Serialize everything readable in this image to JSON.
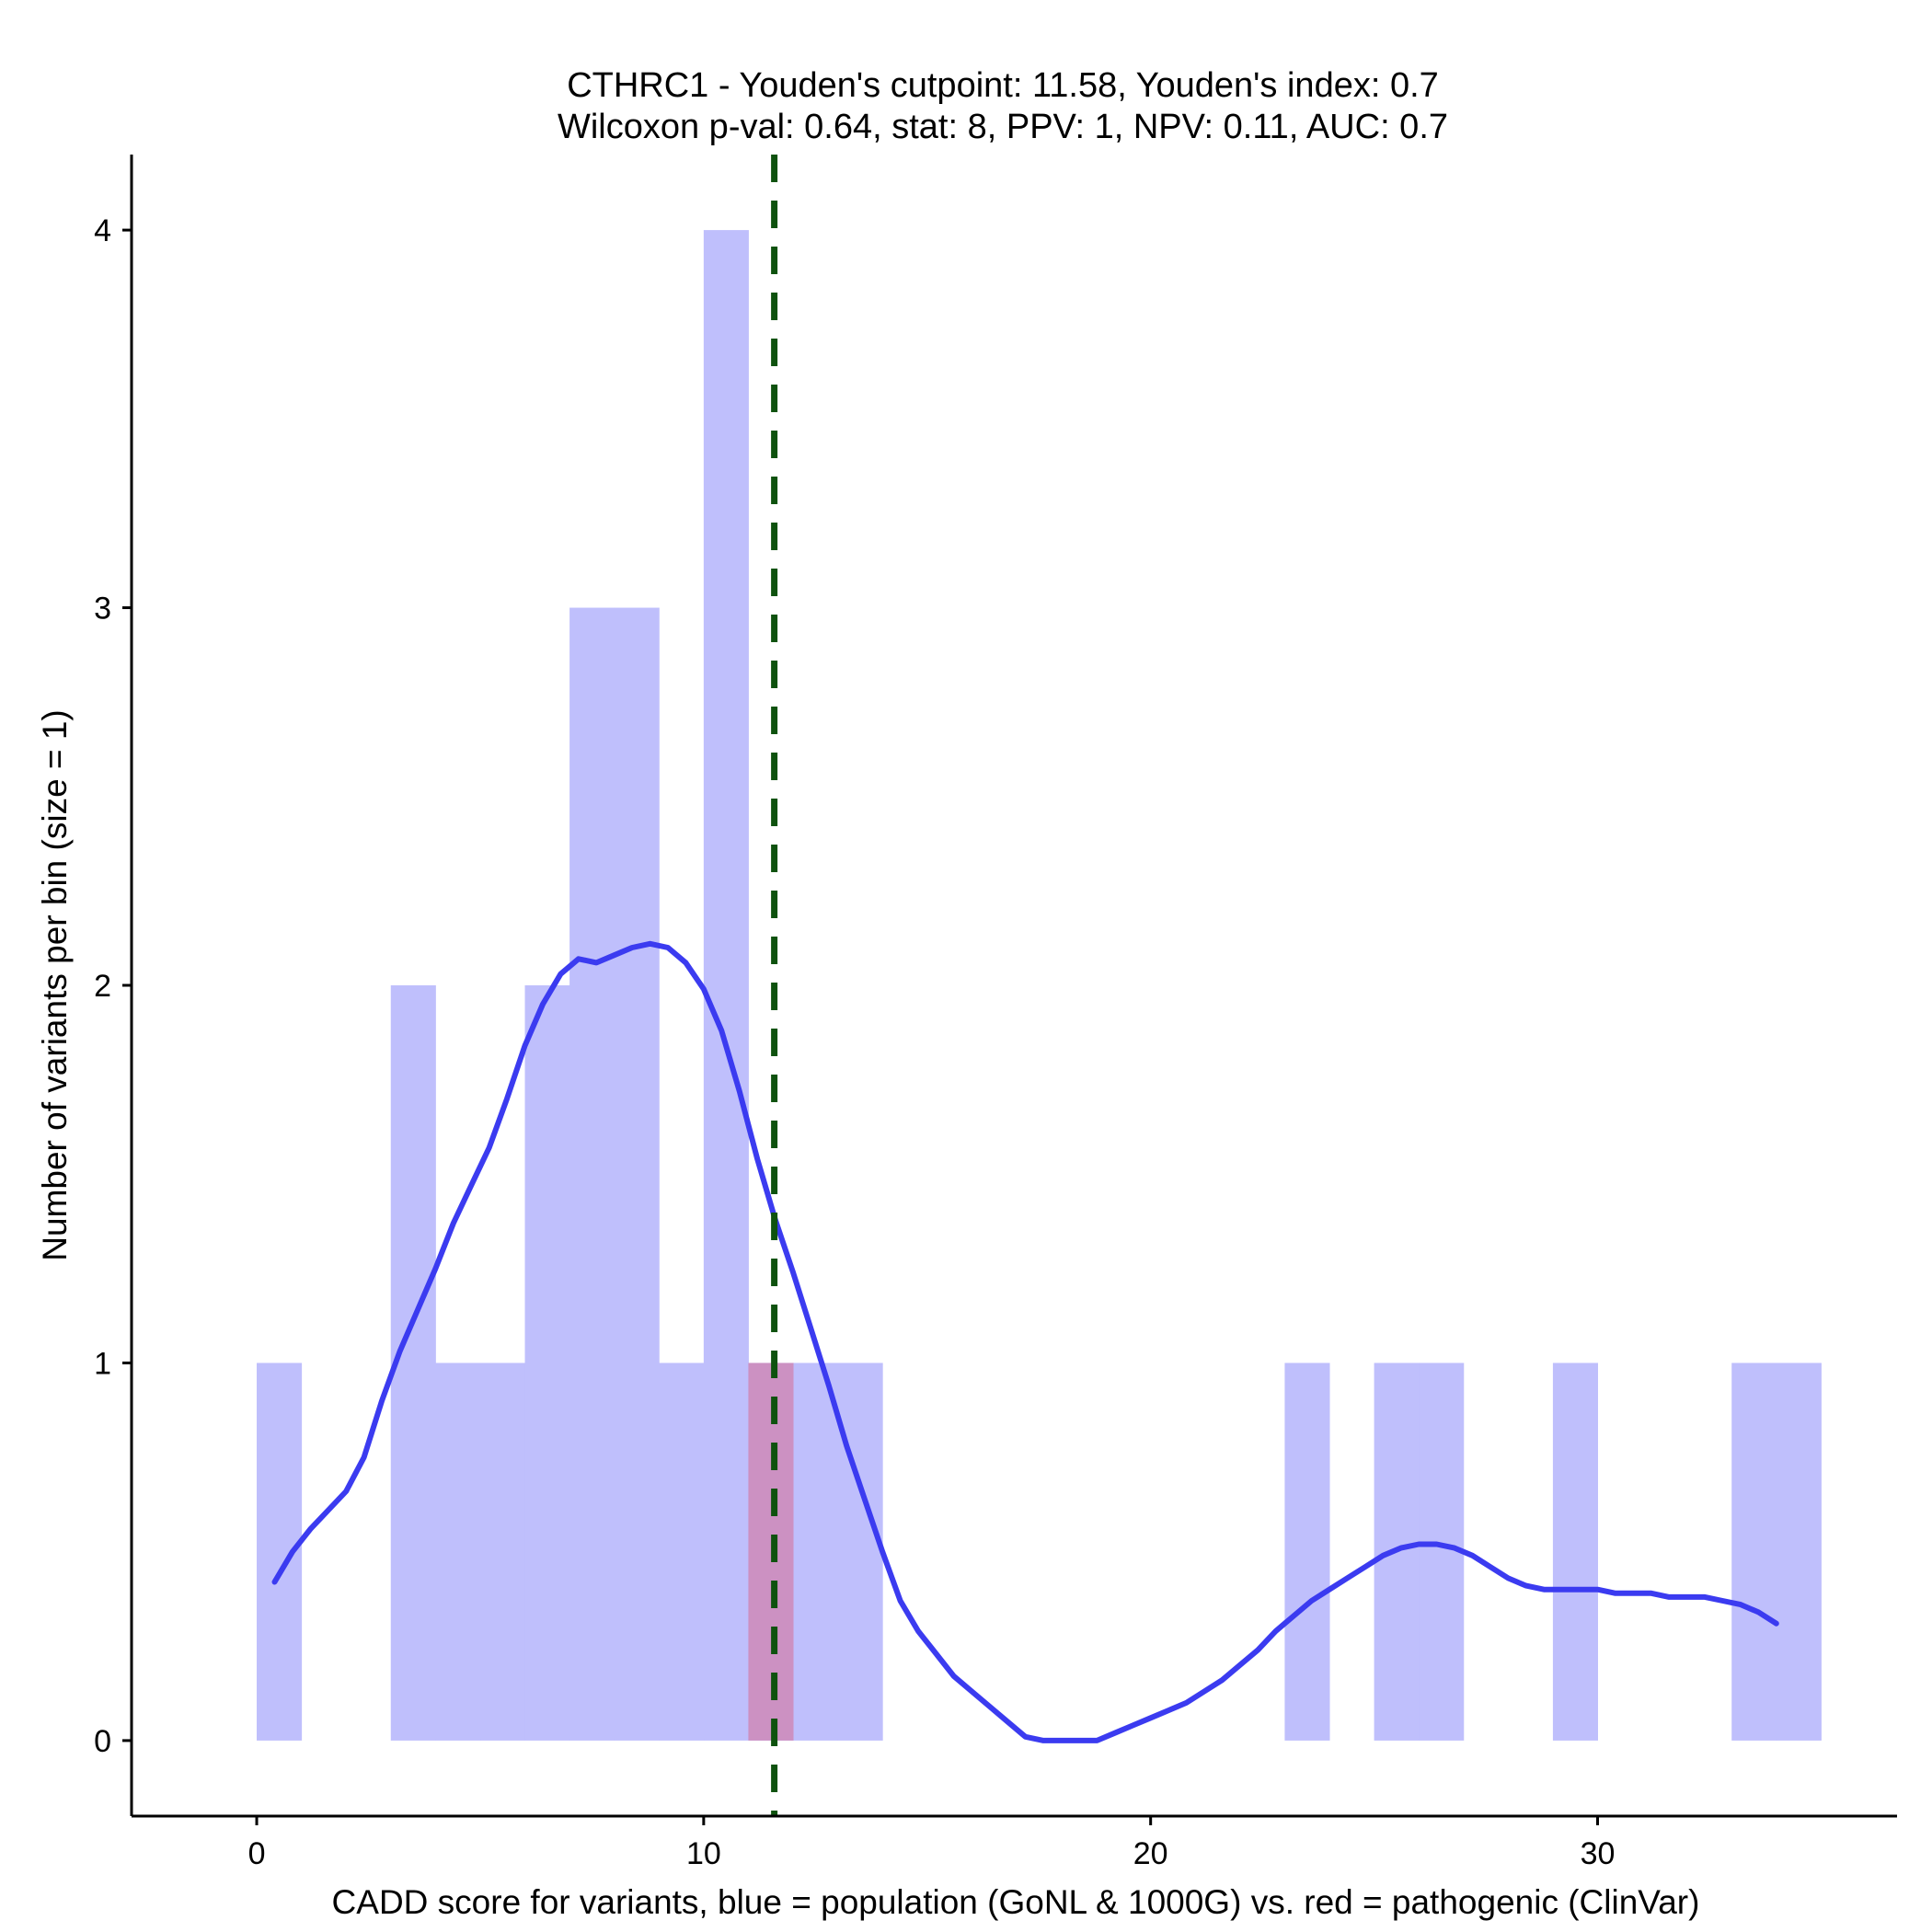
{
  "chart_data": {
    "type": "bar",
    "title_line1": "CTHRC1 - Youden's cutpoint: 11.58, Youden's index: 0.7",
    "title_line2": "Wilcoxon p-val: 0.64, stat: 8, PPV: 1, NPV: 0.11, AUC: 0.7",
    "xlabel": "CADD score for variants, blue = population (GoNL & 1000G) vs. red = pathogenic (ClinVar)",
    "ylabel": "Number of variants per bin (size = 1)",
    "xlim": [
      -2.8,
      36.7
    ],
    "ylim": [
      -0.2,
      4.2
    ],
    "xticks": [
      0,
      10,
      20,
      30
    ],
    "xtick_labels": [
      "0",
      "10",
      "20",
      "30"
    ],
    "yticks": [
      0,
      1,
      2,
      3,
      4
    ],
    "ytick_labels": [
      "0",
      "1",
      "2",
      "3",
      "4"
    ],
    "bin_width": 1,
    "series": [
      {
        "name": "population (GoNL & 1000G)",
        "color": "#bfbffc",
        "bins": [
          {
            "x0": 0,
            "count": 1
          },
          {
            "x0": 3,
            "count": 2
          },
          {
            "x0": 4,
            "count": 1
          },
          {
            "x0": 5,
            "count": 1
          },
          {
            "x0": 6,
            "count": 2
          },
          {
            "x0": 7,
            "count": 3
          },
          {
            "x0": 8,
            "count": 3
          },
          {
            "x0": 9,
            "count": 1
          },
          {
            "x0": 10,
            "count": 4
          },
          {
            "x0": 11,
            "count": 1
          },
          {
            "x0": 12,
            "count": 1
          },
          {
            "x0": 13,
            "count": 1
          },
          {
            "x0": 23,
            "count": 1
          },
          {
            "x0": 25,
            "count": 1
          },
          {
            "x0": 26,
            "count": 1
          },
          {
            "x0": 29,
            "count": 1
          },
          {
            "x0": 33,
            "count": 1
          },
          {
            "x0": 34,
            "count": 1
          }
        ]
      },
      {
        "name": "pathogenic (ClinVar)",
        "color": "#cc8ebf",
        "bins": [
          {
            "x0": 11,
            "count": 1
          }
        ]
      }
    ],
    "density_curve": {
      "name": "population density",
      "color": "#3b3bf0",
      "x": [
        0.4,
        0.8,
        1.2,
        1.6,
        2.0,
        2.4,
        2.8,
        3.2,
        3.6,
        4.0,
        4.4,
        4.8,
        5.2,
        5.6,
        6.0,
        6.4,
        6.8,
        7.2,
        7.6,
        8.0,
        8.4,
        8.8,
        9.2,
        9.6,
        10.0,
        10.4,
        10.8,
        11.2,
        11.6,
        12.0,
        12.4,
        12.8,
        13.2,
        13.6,
        14.0,
        14.4,
        14.8,
        15.2,
        15.6,
        16.0,
        16.4,
        16.8,
        17.2,
        17.6,
        18.0,
        18.4,
        18.8,
        19.2,
        19.6,
        20.0,
        20.4,
        20.8,
        21.2,
        21.6,
        22.0,
        22.4,
        22.8,
        23.2,
        23.6,
        24.0,
        24.4,
        24.8,
        25.2,
        25.6,
        26.0,
        26.4,
        26.8,
        27.2,
        27.6,
        28.0,
        28.4,
        28.8,
        29.2,
        29.6,
        30.0,
        30.4,
        30.8,
        31.2,
        31.6,
        32.0,
        32.4,
        32.8,
        33.2,
        33.6,
        34.0
      ],
      "y": [
        0.42,
        0.5,
        0.56,
        0.61,
        0.66,
        0.75,
        0.9,
        1.03,
        1.14,
        1.25,
        1.37,
        1.47,
        1.57,
        1.7,
        1.84,
        1.95,
        2.03,
        2.07,
        2.06,
        2.08,
        2.1,
        2.11,
        2.1,
        2.06,
        1.99,
        1.88,
        1.72,
        1.54,
        1.38,
        1.24,
        1.09,
        0.94,
        0.78,
        0.64,
        0.5,
        0.37,
        0.29,
        0.23,
        0.17,
        0.13,
        0.09,
        0.05,
        0.01,
        0.0,
        0.0,
        0.0,
        0.0,
        0.02,
        0.04,
        0.06,
        0.08,
        0.1,
        0.13,
        0.16,
        0.2,
        0.24,
        0.29,
        0.33,
        0.37,
        0.4,
        0.43,
        0.46,
        0.49,
        0.51,
        0.52,
        0.52,
        0.51,
        0.49,
        0.46,
        0.43,
        0.41,
        0.4,
        0.4,
        0.4,
        0.4,
        0.39,
        0.39,
        0.39,
        0.38,
        0.38,
        0.38,
        0.37,
        0.36,
        0.34,
        0.31
      ]
    },
    "cutpoint": {
      "x": 11.58,
      "color": "#0e520e",
      "style": "dashed"
    },
    "legend": "none",
    "grid": false
  }
}
